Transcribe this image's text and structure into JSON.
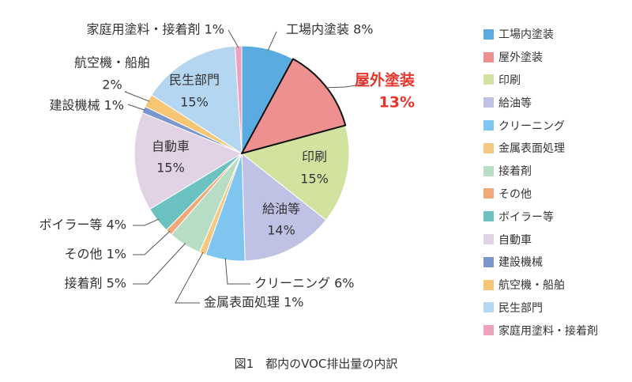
{
  "caption": "図1　都内のVOC排出量の内訳",
  "chart_data": {
    "type": "pie",
    "highlight": "屋外塗装",
    "highlight_color": "#e8322a",
    "slices": [
      {
        "name": "工場内塗装",
        "value": 8,
        "label": "工場内塗装 8%",
        "color": "#5aace0"
      },
      {
        "name": "屋外塗装",
        "value": 13,
        "label": "屋外塗装",
        "pct": "13%",
        "color": "#ef9090"
      },
      {
        "name": "印刷",
        "value": 15,
        "label": "印刷",
        "pct": "15%",
        "color": "#d2e3a0"
      },
      {
        "name": "給油等",
        "value": 14,
        "label": "給油等",
        "pct": "14%",
        "color": "#bfc2e4"
      },
      {
        "name": "クリーニング",
        "value": 6,
        "label": "クリーニング 6%",
        "color": "#7ec6ef"
      },
      {
        "name": "金属表面処理",
        "value": 1,
        "label": "金属表面処理 1%",
        "color": "#f4c880"
      },
      {
        "name": "接着剤",
        "value": 5,
        "label": "接着剤 5%",
        "color": "#b7dec4"
      },
      {
        "name": "その他",
        "value": 1,
        "label": "その他 1%",
        "color": "#f2a97a"
      },
      {
        "name": "ボイラー等",
        "value": 4,
        "label": "ボイラー等 4%",
        "color": "#6cc2c0"
      },
      {
        "name": "自動車",
        "value": 15,
        "label": "自動車",
        "pct": "15%",
        "color": "#e2d2e6"
      },
      {
        "name": "建設機械",
        "value": 1,
        "label": "建設機械 1%",
        "color": "#7a96cc"
      },
      {
        "name": "航空機・船舶",
        "value": 2,
        "label": "航空機・船舶",
        "pct": "2%",
        "color": "#f6c675"
      },
      {
        "name": "民生部門",
        "value": 15,
        "label": "民生部門",
        "pct": "15%",
        "color": "#b4d6f0"
      },
      {
        "name": "家庭用塗料・接着剤",
        "value": 1,
        "label": "家庭用塗料・接着剤 1%",
        "color": "#f0a0bd"
      }
    ],
    "legend_position": "right"
  }
}
